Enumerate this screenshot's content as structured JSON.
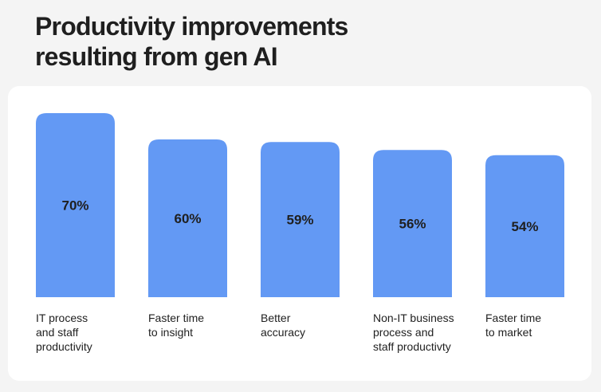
{
  "header": {
    "title_lines": [
      "Productivity improvements",
      "resulting from gen AI"
    ]
  },
  "colors": {
    "background": "#f4f4f4",
    "card": "#ffffff",
    "bar": "#6399f4",
    "text": "#1f1f1f"
  },
  "chart_data": {
    "type": "bar",
    "title": "Productivity improvements resulting from gen AI",
    "categories": [
      "IT process and staff productivity",
      "Faster time to insight",
      "Better accuracy",
      "Non-IT business process and staff productivty",
      "Faster time to market"
    ],
    "category_label_lines": [
      [
        "IT process",
        "and staff",
        "productivity"
      ],
      [
        "Faster time",
        "to insight"
      ],
      [
        "Better",
        "accuracy"
      ],
      [
        "Non-IT business",
        "process and",
        "staff productivty"
      ],
      [
        "Faster time",
        "to market"
      ]
    ],
    "values": [
      70,
      60,
      59,
      56,
      54
    ],
    "data_labels": [
      "70%",
      "60%",
      "59%",
      "56%",
      "54%"
    ],
    "unit": "%",
    "xlabel": "",
    "ylabel": "",
    "ylim": [
      0,
      70
    ],
    "grid": false,
    "legend": "none"
  }
}
